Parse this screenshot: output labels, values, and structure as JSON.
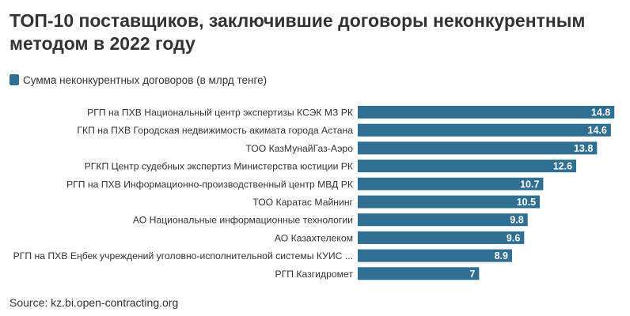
{
  "chart_data": {
    "type": "bar",
    "orientation": "horizontal",
    "title": "ТОП-10 поставщиков, заключившие договоры неконкурентным методом в 2022 году",
    "legend": {
      "position": "top-left",
      "entries": [
        "Сумма неконкурентных договоров (в млрд тенге)"
      ]
    },
    "categories": [
      "РГП на ПХВ Национальный центр экспертизы КСЭК МЗ РК",
      "ГКП на ПХВ Городская недвижимость акимата города Астана",
      "ТОО КазМунайГаз-Аэро",
      "РГКП Центр судебных экспертиз Министерства юстиции РК",
      "РГП на ПХВ Информационно-производственный центр МВД РК",
      "ТОО Каратас Майнинг",
      "АО Национальные информационные технологии",
      "АО Казахтелеком",
      "РГП на ПХВ Еңбек учреждений уголовно-исполнительной системы КУИС ...",
      "РГП Казгидромет"
    ],
    "series": [
      {
        "name": "Сумма неконкурентных договоров (в млрд тенге)",
        "values": [
          14.8,
          14.6,
          13.8,
          12.6,
          10.7,
          10.5,
          9.8,
          9.6,
          8.9,
          7
        ]
      }
    ],
    "value_labels": [
      "14.8",
      "14.6",
      "13.8",
      "12.6",
      "10.7",
      "10.5",
      "9.8",
      "9.6",
      "8.9",
      "7"
    ],
    "xlim": [
      0,
      15.2
    ],
    "grid": false,
    "bar_color": "#2e6f93",
    "label_color": "#ffffff"
  },
  "source": "Source: kz.bi.open-contracting.org"
}
